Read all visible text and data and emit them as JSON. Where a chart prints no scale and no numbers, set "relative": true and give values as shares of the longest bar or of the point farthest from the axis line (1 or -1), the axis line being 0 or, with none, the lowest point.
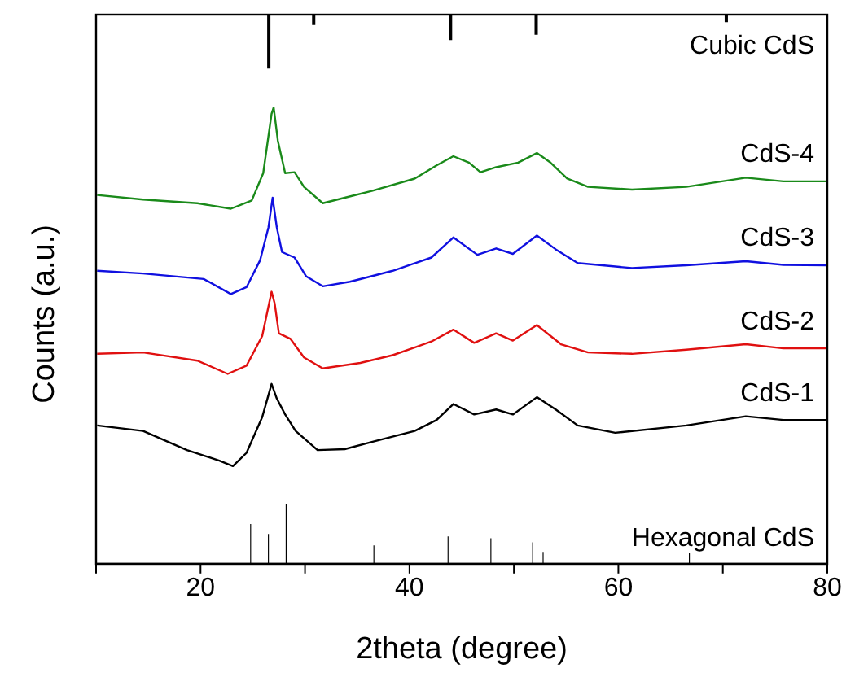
{
  "chart_data": [
    {
      "type": "bar",
      "relative": true,
      "xlim": [
        10,
        80
      ],
      "tick_labels": false,
      "series": [
        {
          "name": "Cubic CdS",
          "color": "#000000",
          "x": [
            26.5,
            30.8,
            43.9,
            52.1,
            70.3
          ],
          "values": [
            -1,
            -0.19,
            -0.47,
            -0.37,
            -0.14
          ]
        }
      ]
    },
    {
      "type": "line",
      "relative": true,
      "xlabel": "2theta (degree)",
      "ylabel": "Counts (a.u.)",
      "xlim": [
        10,
        80
      ],
      "xticks": [
        {
          "value": 10,
          "label": null
        },
        20,
        {
          "value": 30,
          "label": null
        },
        40,
        {
          "value": 50,
          "label": null
        },
        60,
        {
          "value": 70,
          "label": null
        },
        80
      ],
      "marker": "none",
      "line_style": "solid",
      "series": [
        {
          "name": "CdS-4",
          "color": "#1a8a1a",
          "x": [
            10.1,
            14.5,
            19.7,
            22.9,
            24.9,
            26.0,
            26.8,
            27.0,
            27.4,
            28.1,
            29.0,
            29.9,
            31.7,
            33.8,
            36.4,
            40.5,
            42.6,
            44.2,
            45.7,
            46.8,
            48.3,
            50.4,
            52.2,
            53.5,
            55.1,
            57.1,
            61.3,
            66.5,
            72.2,
            75.8,
            80.0
          ],
          "values": [
            0.808,
            0.798,
            0.79,
            0.778,
            0.796,
            0.856,
            0.986,
            1,
            0.927,
            0.856,
            0.858,
            0.826,
            0.79,
            0.802,
            0.817,
            0.844,
            0.873,
            0.893,
            0.879,
            0.858,
            0.869,
            0.879,
            0.9,
            0.879,
            0.844,
            0.826,
            0.82,
            0.826,
            0.846,
            0.838,
            0.838
          ]
        },
        {
          "name": "CdS-3",
          "color": "#1010e0",
          "x": [
            10.1,
            14.5,
            20.3,
            22.9,
            24.4,
            25.7,
            26.5,
            26.9,
            27.3,
            27.8,
            29.0,
            30.1,
            31.7,
            34.3,
            38.4,
            42.1,
            44.2,
            46.5,
            48.3,
            49.9,
            52.2,
            54.0,
            56.1,
            61.3,
            66.5,
            72.2,
            75.8,
            80.0
          ],
          "values": [
            0.642,
            0.636,
            0.624,
            0.591,
            0.606,
            0.665,
            0.737,
            0.802,
            0.737,
            0.683,
            0.671,
            0.63,
            0.608,
            0.618,
            0.642,
            0.671,
            0.715,
            0.677,
            0.691,
            0.679,
            0.719,
            0.689,
            0.659,
            0.648,
            0.654,
            0.663,
            0.655,
            0.654
          ]
        },
        {
          "name": "CdS-2",
          "color": "#e01010",
          "x": [
            10.1,
            14.5,
            19.7,
            22.6,
            24.4,
            25.9,
            26.8,
            27.1,
            27.5,
            28.6,
            29.9,
            31.7,
            35.3,
            38.4,
            42.1,
            44.2,
            46.2,
            48.3,
            49.9,
            52.2,
            54.5,
            57.1,
            61.3,
            66.5,
            72.2,
            75.8,
            80.0
          ],
          "values": [
            0.46,
            0.463,
            0.445,
            0.416,
            0.434,
            0.499,
            0.596,
            0.57,
            0.505,
            0.493,
            0.452,
            0.428,
            0.44,
            0.457,
            0.487,
            0.513,
            0.484,
            0.505,
            0.489,
            0.523,
            0.481,
            0.463,
            0.46,
            0.469,
            0.481,
            0.472,
            0.472
          ]
        },
        {
          "name": "CdS-1",
          "color": "#000000",
          "x": [
            10.1,
            14.5,
            18.7,
            21.8,
            23.1,
            24.4,
            25.9,
            26.8,
            27.3,
            28.1,
            29.1,
            31.2,
            33.8,
            36.4,
            40.5,
            42.6,
            44.2,
            46.2,
            48.3,
            49.9,
            52.2,
            54.0,
            56.1,
            59.7,
            66.5,
            72.2,
            75.8,
            80.0
          ],
          "values": [
            0.303,
            0.291,
            0.249,
            0.226,
            0.214,
            0.243,
            0.321,
            0.394,
            0.362,
            0.327,
            0.291,
            0.249,
            0.251,
            0.267,
            0.291,
            0.315,
            0.35,
            0.327,
            0.338,
            0.327,
            0.365,
            0.338,
            0.303,
            0.287,
            0.303,
            0.323,
            0.315,
            0.315
          ]
        },
        {
          "name": "Hexagonal CdS",
          "type": "bar",
          "color": "#000000",
          "x": [
            24.8,
            26.5,
            28.2,
            36.6,
            43.7,
            47.8,
            51.8,
            52.8,
            66.8
          ],
          "values": [
            0.087,
            0.065,
            0.13,
            0.04,
            0.06,
            0.056,
            0.047,
            0.026,
            0.024
          ]
        }
      ]
    }
  ]
}
